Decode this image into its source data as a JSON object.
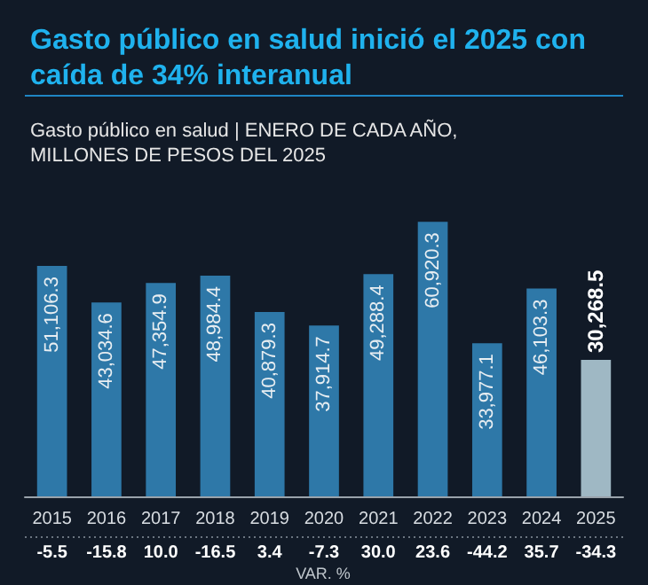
{
  "chart_data": {
    "type": "bar",
    "title": "Gasto público en salud inició el 2025 con caída de 34% interanual",
    "subtitle": "Gasto público en salud | ENERO DE CADA AÑO, MILLONES DE PESOS DEL 2025",
    "categories": [
      "2015",
      "2016",
      "2017",
      "2018",
      "2019",
      "2020",
      "2021",
      "2022",
      "2023",
      "2024",
      "2025"
    ],
    "values": [
      51106.3,
      43034.6,
      47354.9,
      48984.4,
      40879.3,
      37914.7,
      49288.4,
      60920.3,
      33977.1,
      46103.3,
      30268.5
    ],
    "value_labels": [
      "51,106.3",
      "43,034.6",
      "47,354.9",
      "48,984.4",
      "40,879.3",
      "37,914.7",
      "49,288.4",
      "60,920.3",
      "33,977.1",
      "46,103.3",
      "30,268.5"
    ],
    "colors": [
      "#2e78a8",
      "#2e78a8",
      "#2e78a8",
      "#2e78a8",
      "#2e78a8",
      "#2e78a8",
      "#2e78a8",
      "#2e78a8",
      "#2e78a8",
      "#2e78a8",
      "#9fb8c4"
    ],
    "grid": false,
    "annotations": [
      "-5.5",
      "-15.8",
      "10.0",
      "-16.5",
      "3.4",
      "-7.3",
      "30.0",
      "23.6",
      "-44.2",
      "35.7",
      "-34.3",
      "VAR. %"
    ]
  }
}
